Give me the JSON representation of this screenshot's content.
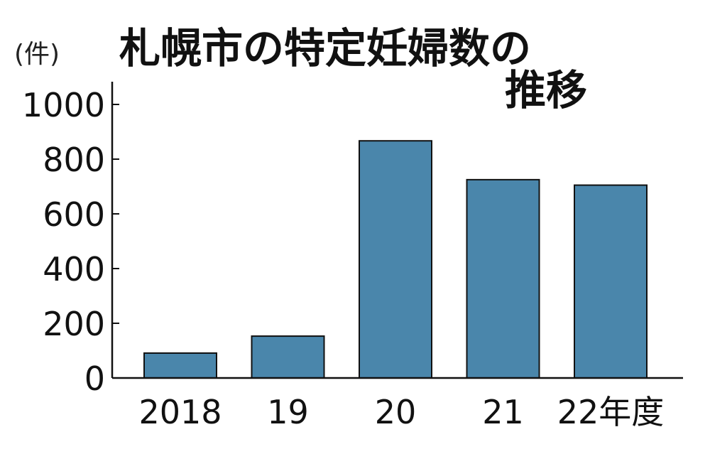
{
  "chart_data": {
    "type": "bar",
    "title_lines": [
      "札幌市の特定妊婦数の",
      "推移"
    ],
    "unit_label": "(件)",
    "categories": [
      "2018",
      "19",
      "20",
      "21",
      "22年度"
    ],
    "values": [
      91,
      153,
      867,
      725,
      705
    ],
    "ylim": [
      0,
      1000
    ],
    "yticks": [
      0,
      200,
      400,
      600,
      800,
      1000
    ],
    "grid": false,
    "legend": "none",
    "colors": {
      "bar": "#4a86ab",
      "outline": "#111111"
    }
  }
}
